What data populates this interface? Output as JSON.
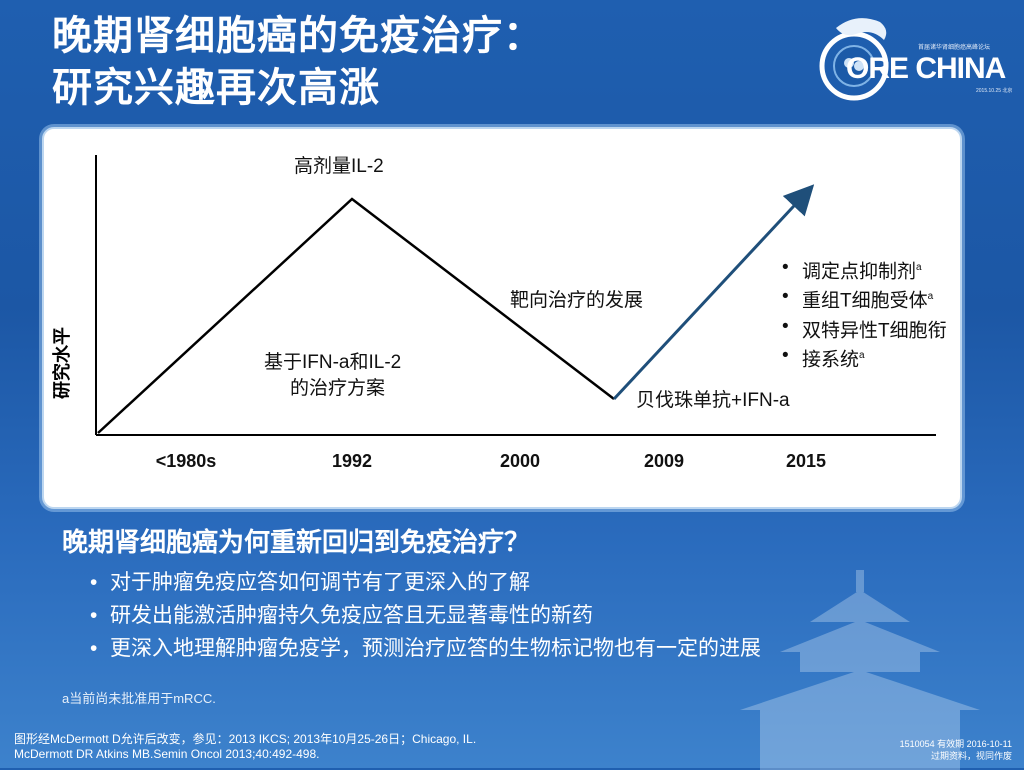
{
  "title": {
    "line1": "晚期肾细胞癌的免疫治疗：",
    "line2": "研究兴趣再次高涨"
  },
  "logo": {
    "text": "ORE CHINA",
    "subtitle": "首届诸华肾细胞癌高峰论坛",
    "date": "2015.10.25 北京"
  },
  "chart_data": {
    "type": "line",
    "ylabel": "研究水平",
    "categories": [
      "<1980s",
      "1992",
      "2000",
      "2009",
      "2015"
    ],
    "annotations": {
      "peak": "高剂量IL-2",
      "rise": [
        "基于IFN-a和IL-2",
        "的治疗方案"
      ],
      "decline": "靶向治疗的发展",
      "trough": "贝伐珠单抗+IFN-a"
    },
    "bullets": [
      {
        "text": "调定点抑制剂",
        "sup": "a"
      },
      {
        "text": "重组T细胞受体",
        "sup": "a"
      },
      {
        "text": "双特异性T细胞衔",
        "sup": ""
      },
      {
        "text": "接系统",
        "sup": "a"
      }
    ]
  },
  "question": "晚期肾细胞癌为何重新回归到免疫治疗？",
  "points": [
    "对于肿瘤免疫应答如何调节有了更深入的了解",
    "研发出能激活肿瘤持久免疫应答且无显著毒性的新药",
    "更深入地理解肿瘤免疫学，预测治疗应答的生物标记物也有一定的进展"
  ],
  "note": "a当前尚未批准用于mRCC.",
  "refs": {
    "line1": "图形经McDermott D允许后改变，参见：2013 IKCS; 2013年10月25-26日；Chicago, IL.",
    "line2": "McDermott DR Atkins MB.Semin Oncol 2013;40:492-498."
  },
  "code": {
    "line1": "1510054  有效期 2016-10-11",
    "line2": "过期资料，视同作废"
  },
  "colors": {
    "background": "#1f5fb0",
    "line": "#000000",
    "arrow": "#1f4f7a"
  }
}
